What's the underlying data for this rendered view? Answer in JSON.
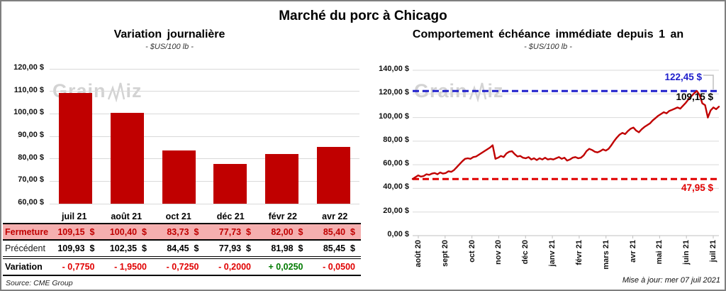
{
  "page": {
    "title": "Marché du porc à Chicago",
    "source": "Source: CME Group",
    "updated": "Mise à jour: mer 07 juil 2021",
    "watermark": {
      "part1": "Grain",
      "part2": "iz"
    }
  },
  "colors": {
    "bar_red": "#C00000",
    "line_red": "#C00000",
    "ref_high_blue": "#2020CC",
    "ref_low_red": "#E00000",
    "table_highlight_pink": "#F5AFAF",
    "variation_negative": "#E00000",
    "variation_positive": "#007A00",
    "gridline": "#D9D9D9"
  },
  "chart_data": [
    {
      "id": "variation_journaliere",
      "type": "bar",
      "title": "Variation journalière",
      "subtitle": "- $US/100 lb -",
      "categories": [
        "juil 21",
        "août 21",
        "oct 21",
        "déc 21",
        "févr 22",
        "avr 22"
      ],
      "values": [
        109.15,
        100.4,
        83.73,
        77.73,
        82.0,
        85.4
      ],
      "ylim": [
        60,
        120
      ],
      "ytick_labels": [
        "120,00 $",
        "110,00 $",
        "100,00 $",
        "90,00 $",
        "80,00 $",
        "70,00 $",
        "60,00 $"
      ],
      "bar_color": "#C00000",
      "grid": true,
      "table": {
        "rows": [
          {
            "label": "Fermeture",
            "style": "fermeture",
            "values": [
              "109,15  $",
              "100,40  $",
              "83,73  $",
              "77,73  $",
              "82,00  $",
              "85,40  $"
            ]
          },
          {
            "label": "Précédent",
            "style": "precedent",
            "values": [
              "109,93  $",
              "102,35  $",
              "84,45  $",
              "77,93  $",
              "81,98  $",
              "85,45  $"
            ]
          },
          {
            "label": "Variation",
            "style": "variation",
            "values": [
              "- 0,7750",
              "- 1,9500",
              "- 0,7250",
              "- 0,2000",
              "+ 0,0250",
              "- 0,0500"
            ]
          }
        ]
      }
    },
    {
      "id": "comportement_echeance_immediate",
      "type": "line",
      "title": "Comportement échéance immédiate depuis 1 an",
      "subtitle": "- $US/100 lb -",
      "x_labels": [
        "août 20",
        "sept 20",
        "oct 20",
        "nov 20",
        "déc 20",
        "janv 21",
        "févr 21",
        "mars 21",
        "avr 21",
        "mai 21",
        "juin 21",
        "juil 21"
      ],
      "ylim": [
        0,
        140
      ],
      "ytick_labels": [
        "140,00 $",
        "120,00 $",
        "100,00 $",
        "80,00 $",
        "60,00 $",
        "40,00 $",
        "20,00 $",
        "0,00 $"
      ],
      "grid": true,
      "series": [
        {
          "name": "prix échéance immédiate",
          "color": "#C00000",
          "values": [
            48,
            49.5,
            51,
            50,
            50.5,
            52,
            51.5,
            52.5,
            53,
            52,
            53.5,
            52.5,
            53,
            54.5,
            54,
            55.5,
            58,
            60.5,
            63,
            65,
            65.5,
            65,
            66.5,
            67,
            68.5,
            70,
            71.5,
            73,
            74.5,
            76.5,
            65,
            66,
            67.5,
            66.5,
            69.5,
            71,
            71.5,
            69,
            67,
            67.5,
            66,
            65.5,
            66.5,
            64.5,
            65.5,
            64,
            65.5,
            64.5,
            66,
            64.5,
            65,
            64.5,
            65.5,
            66.5,
            65,
            66,
            63.5,
            64.5,
            66,
            66.5,
            65.5,
            66,
            68,
            71.5,
            73.5,
            72.5,
            71,
            70.5,
            71.5,
            73,
            72,
            73.5,
            76.5,
            80,
            83,
            85.5,
            87,
            86,
            88.5,
            90.5,
            91.5,
            89,
            87.5,
            90,
            92,
            93.5,
            95,
            97.5,
            99.5,
            101.5,
            103,
            104.5,
            103.5,
            105.5,
            106.5,
            107.5,
            108.5,
            107.5,
            110,
            112.5,
            115.5,
            118,
            120.5,
            122.45,
            119,
            112,
            110.5,
            100,
            106,
            108.5,
            107,
            109.15
          ]
        }
      ],
      "ref_lines": [
        {
          "value": 122.45,
          "label": "122,45 $",
          "color": "#2020CC"
        },
        {
          "value": 47.95,
          "label": "47,95 $",
          "color": "#E00000"
        }
      ],
      "last_value": 109.15,
      "last_label": "109,15 $"
    }
  ]
}
